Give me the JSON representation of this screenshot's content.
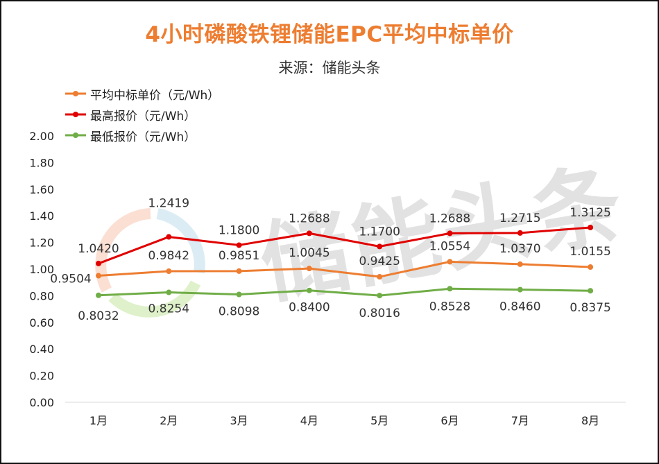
{
  "chart_data": {
    "type": "line",
    "title": "4小时磷酸铁锂储能EPC平均中标单价",
    "subtitle": "来源：储能头条",
    "watermark": "储能头条",
    "categories": [
      "1月",
      "2月",
      "3月",
      "4月",
      "5月",
      "6月",
      "7月",
      "8月"
    ],
    "ylim": [
      0,
      2
    ],
    "yticks": [
      "0.00",
      "0.20",
      "0.40",
      "0.60",
      "0.80",
      "1.00",
      "1.20",
      "1.40",
      "1.60",
      "1.80",
      "2.00"
    ],
    "grid": false,
    "legend_position": "top-left",
    "series": [
      {
        "name": "平均中标单价（元/Wh）",
        "color": "#ED7D31",
        "values": [
          0.9504,
          0.9842,
          0.9851,
          1.0045,
          0.9425,
          1.0554,
          1.037,
          1.0155
        ],
        "labels": [
          "0.9504",
          "0.9842",
          "0.9851",
          "1.0045",
          "0.9425",
          "1.0554",
          "1.0370",
          "1.0155"
        ]
      },
      {
        "name": "最高报价（元/Wh）",
        "color": "#E00000",
        "values": [
          1.042,
          1.2419,
          1.18,
          1.2688,
          1.17,
          1.2688,
          1.2715,
          1.3125
        ],
        "labels": [
          "1.0420",
          "1.2419",
          "1.1800",
          "1.2688",
          "1.1700",
          "1.2688",
          "1.2715",
          "1.3125"
        ]
      },
      {
        "name": "最低报价（元/Wh）",
        "color": "#70AD47",
        "values": [
          0.8032,
          0.8254,
          0.8098,
          0.84,
          0.8016,
          0.8528,
          0.846,
          0.8375
        ],
        "labels": [
          "0.8032",
          "0.8254",
          "0.8098",
          "0.8400",
          "0.8016",
          "0.8528",
          "0.8460",
          "0.8375"
        ]
      }
    ]
  }
}
